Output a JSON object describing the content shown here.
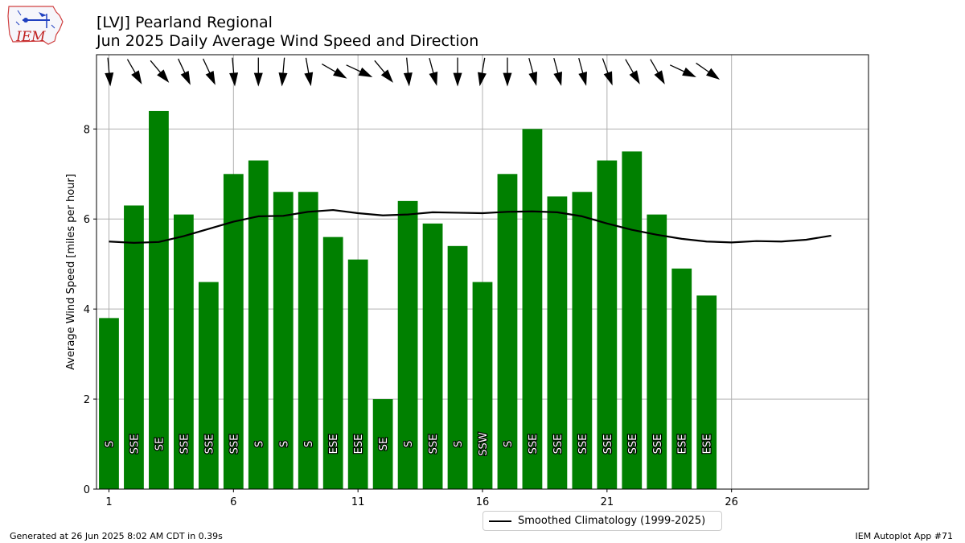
{
  "header": {
    "title_line1": "[LVJ] Pearland Regional",
    "title_line2": "Jun 2025 Daily Average Wind Speed and Direction"
  },
  "logo": {
    "text": "IEM"
  },
  "footer": {
    "generated": "Generated at 26 Jun 2025 8:02 AM CDT in 0.39s",
    "app": "IEM Autoplot App #71"
  },
  "legend": {
    "label": "Smoothed Climatology (1999-2025)"
  },
  "colors": {
    "bar": "#008000",
    "climo_line": "#000000",
    "grid": "#b0b0b0"
  },
  "chart_data": {
    "type": "bar",
    "ylabel": "Average Wind Speed [miles per hour]",
    "xlabel": "",
    "ylim": [
      0,
      9.65
    ],
    "xlim": [
      0.5,
      31.5
    ],
    "grid": true,
    "legend_position": "bottom-center, below plot",
    "x_ticks": [
      1,
      6,
      11,
      16,
      21,
      26
    ],
    "y_ticks": [
      0,
      2,
      4,
      6,
      8
    ],
    "days": [
      1,
      2,
      3,
      4,
      5,
      6,
      7,
      8,
      9,
      10,
      11,
      12,
      13,
      14,
      15,
      16,
      17,
      18,
      19,
      20,
      21,
      22,
      23,
      24,
      25
    ],
    "values": [
      3.8,
      6.3,
      8.4,
      6.1,
      4.6,
      7.0,
      7.3,
      6.6,
      6.6,
      5.6,
      5.1,
      2.0,
      6.4,
      5.9,
      5.4,
      4.6,
      7.0,
      8.0,
      6.5,
      6.6,
      7.3,
      7.5,
      6.1,
      4.9,
      4.3
    ],
    "directions": [
      "S",
      "SSE",
      "SE",
      "SSE",
      "SSE",
      "SSE",
      "S",
      "S",
      "S",
      "ESE",
      "ESE",
      "SE",
      "S",
      "SSE",
      "S",
      "SSW",
      "S",
      "SSE",
      "SSE",
      "SSE",
      "SSE",
      "SSE",
      "SSE",
      "ESE",
      "ESE"
    ],
    "arrow_bearings_deg": [
      175,
      150,
      140,
      155,
      155,
      175,
      180,
      185,
      170,
      120,
      115,
      140,
      175,
      165,
      180,
      190,
      180,
      165,
      165,
      165,
      160,
      150,
      150,
      115,
      125
    ],
    "series": [
      {
        "name": "Smoothed Climatology (1999-2025)",
        "type": "line",
        "x": [
          1,
          2,
          3,
          4,
          5,
          6,
          7,
          8,
          9,
          10,
          11,
          12,
          13,
          14,
          15,
          16,
          17,
          18,
          19,
          20,
          21,
          22,
          23,
          24,
          25,
          26,
          27,
          28,
          29,
          30
        ],
        "values": [
          5.5,
          5.47,
          5.49,
          5.62,
          5.78,
          5.94,
          6.06,
          6.07,
          6.16,
          6.2,
          6.13,
          6.08,
          6.1,
          6.15,
          6.14,
          6.13,
          6.16,
          6.17,
          6.15,
          6.06,
          5.9,
          5.76,
          5.65,
          5.56,
          5.5,
          5.48,
          5.51,
          5.5,
          5.54,
          5.63
        ]
      }
    ]
  }
}
